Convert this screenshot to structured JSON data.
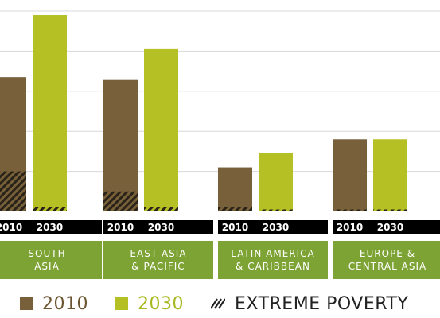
{
  "colors": {
    "bar_2010": "#78603a",
    "bar_2030": "#b4c023",
    "hatch": "#2a2418",
    "year_bar": "#000000",
    "region_box": "#7ea335",
    "gridline": "#d8d8d8",
    "label_2010": "#6b5530",
    "label_2030": "#a8b820",
    "label_poverty": "#222222"
  },
  "legend": {
    "label_2010": "2010",
    "label_2030": "2030",
    "label_poverty": "EXTREME POVERTY",
    "poverty_icon": "hatch-icon"
  },
  "chart_data": {
    "type": "bar",
    "categories": [
      "SOUTH\nASIA",
      "EAST ASIA\n& PACIFIC",
      "LATIN AMERICA\n& CARIBBEAN",
      "EUROPE &\nCENTRAL ASIA"
    ],
    "series": [
      {
        "name": "2010",
        "values": [
          67,
          66,
          22,
          36
        ],
        "extreme_poverty": [
          20,
          10,
          2,
          1
        ]
      },
      {
        "name": "2030",
        "values": [
          98,
          81,
          29,
          36
        ],
        "extreme_poverty": [
          2,
          2,
          1,
          1
        ]
      }
    ],
    "year_labels": [
      "2010",
      "2030"
    ],
    "ylim": [
      0,
      100
    ],
    "grid": true
  }
}
